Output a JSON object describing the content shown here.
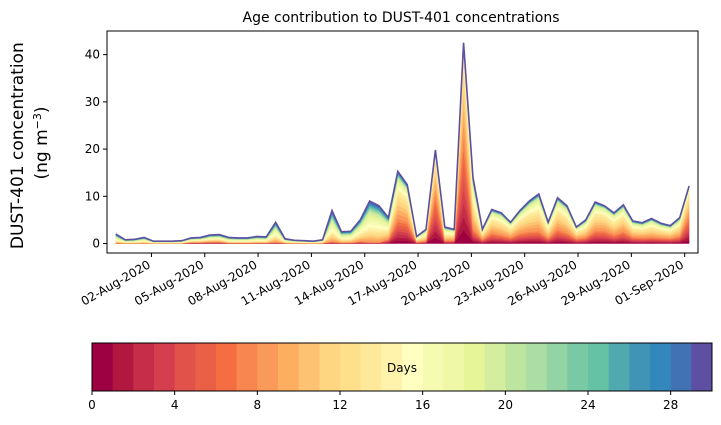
{
  "chart_data": {
    "type": "area",
    "title": "Age contribution to DUST-401 concentrations",
    "ylabel_line1": "DUST-401 concentration",
    "ylabel_line2_prefix": "(ng m",
    "ylabel_line2_sup": "−3",
    "ylabel_line2_suffix": ")",
    "xlabel": "",
    "ylim": [
      -2,
      45
    ],
    "yticks": [
      0,
      10,
      20,
      30,
      40
    ],
    "x_start": "2020-07-31",
    "x_end": "2020-09-01",
    "xticks": [
      "02-Aug-2020",
      "05-Aug-2020",
      "08-Aug-2020",
      "11-Aug-2020",
      "14-Aug-2020",
      "17-Aug-2020",
      "20-Aug-2020",
      "23-Aug-2020",
      "26-Aug-2020",
      "29-Aug-2020",
      "01-Sep-2020"
    ],
    "grid": false,
    "total": [
      2.0,
      0.8,
      0.9,
      1.3,
      0.5,
      0.5,
      0.5,
      0.6,
      1.2,
      1.3,
      1.8,
      1.9,
      1.3,
      1.2,
      1.2,
      1.5,
      1.4,
      4.5,
      1.0,
      0.7,
      0.6,
      0.5,
      0.8,
      7.0,
      2.5,
      2.6,
      5.0,
      9.0,
      8.0,
      5.5,
      15.3,
      12.5,
      1.5,
      3.0,
      19.8,
      3.5,
      3.0,
      42.5,
      14.0,
      3.0,
      7.2,
      6.5,
      4.5,
      7.0,
      9.0,
      10.5,
      4.5,
      9.7,
      8.0,
      3.5,
      5.0,
      8.8,
      8.0,
      6.5,
      8.2,
      4.8,
      4.4,
      5.3,
      4.3,
      3.8,
      5.5,
      12.2
    ],
    "young_share": [
      0.05,
      0.05,
      0.05,
      0.05,
      0.05,
      0.05,
      0.05,
      0.05,
      0.3,
      0.3,
      0.3,
      0.3,
      0.1,
      0.1,
      0.1,
      0.1,
      0.1,
      0.1,
      0.1,
      0.1,
      0.1,
      0.1,
      0.1,
      0.1,
      0.1,
      0.1,
      0.15,
      0.05,
      0.05,
      0.3,
      0.6,
      0.65,
      0.3,
      0.3,
      0.92,
      0.3,
      0.4,
      0.95,
      0.4,
      0.5,
      0.55,
      0.5,
      0.5,
      0.55,
      0.5,
      0.45,
      0.45,
      0.55,
      0.5,
      0.5,
      0.45,
      0.55,
      0.6,
      0.5,
      0.55,
      0.5,
      0.5,
      0.45,
      0.5,
      0.5,
      0.5,
      0.85
    ],
    "old_share": [
      0.45,
      0.45,
      0.45,
      0.45,
      0.45,
      0.45,
      0.45,
      0.45,
      0.35,
      0.35,
      0.35,
      0.35,
      0.4,
      0.4,
      0.4,
      0.4,
      0.4,
      0.4,
      0.4,
      0.4,
      0.4,
      0.4,
      0.4,
      0.45,
      0.4,
      0.4,
      0.35,
      0.4,
      0.4,
      0.3,
      0.15,
      0.12,
      0.2,
      0.2,
      0.03,
      0.2,
      0.15,
      0.02,
      0.15,
      0.15,
      0.12,
      0.12,
      0.12,
      0.12,
      0.12,
      0.12,
      0.12,
      0.12,
      0.12,
      0.12,
      0.15,
      0.12,
      0.1,
      0.12,
      0.12,
      0.15,
      0.15,
      0.15,
      0.15,
      0.15,
      0.15,
      0.05
    ],
    "colorbar": {
      "label": "Days",
      "range": [
        0,
        30
      ],
      "ticks": [
        0,
        4,
        8,
        12,
        16,
        20,
        24,
        28
      ],
      "colors": [
        "#9e0142",
        "#b2183f",
        "#c52e48",
        "#d53e4f",
        "#e1524a",
        "#ea6046",
        "#f46d43",
        "#f88650",
        "#fa9a5a",
        "#fdae61",
        "#fdc272",
        "#fed581",
        "#fee08b",
        "#fee99a",
        "#fff3ac",
        "#ffffbf",
        "#f6fbb2",
        "#eef8a6",
        "#e6f598",
        "#d4ed9e",
        "#bee5a0",
        "#abdda4",
        "#93d3a4",
        "#79c9a5",
        "#66c2a5",
        "#50a9af",
        "#4194b6",
        "#3288bd",
        "#4173b4",
        "#5e4fa2"
      ]
    }
  }
}
